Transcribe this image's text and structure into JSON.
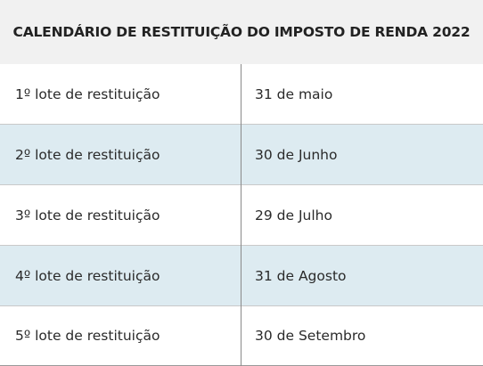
{
  "table": {
    "title": "CALENDÁRIO DE RESTITUIÇÃO DO IMPOSTO DE RENDA 2022",
    "rows": [
      {
        "lote": "1º lote de restituição",
        "data": "31 de maio"
      },
      {
        "lote": "2º lote de restituição",
        "data": "30 de Junho"
      },
      {
        "lote": "3º lote de restituição",
        "data": "29 de Julho"
      },
      {
        "lote": "4º lote de restituição",
        "data": "31 de Agosto"
      },
      {
        "lote": "5º lote de restituição",
        "data": "30 de Setembro"
      }
    ]
  },
  "colors": {
    "header_bg": "#f1f1f1",
    "shaded_row_bg": "#ddebf1",
    "divider": "#8a8a8a"
  }
}
